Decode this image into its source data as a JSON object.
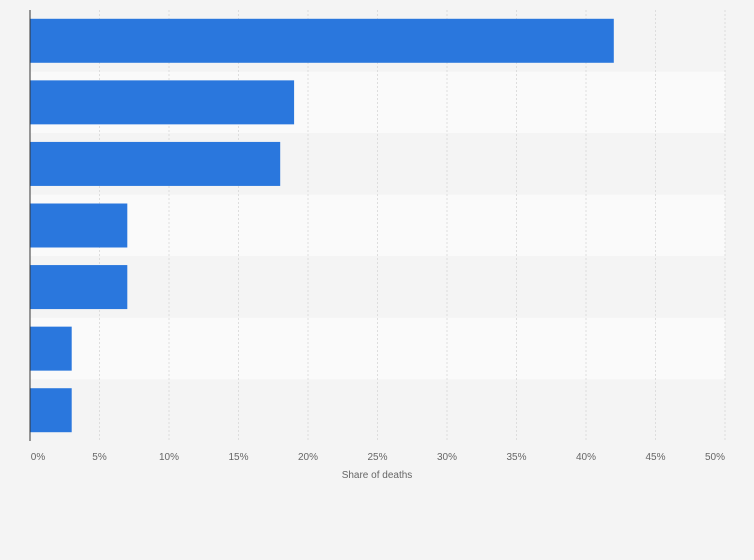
{
  "chart_data": {
    "type": "bar",
    "orientation": "horizontal",
    "categories": [
      "",
      "",
      "",
      "",
      "",
      "",
      ""
    ],
    "values": [
      42,
      19,
      18,
      7,
      7,
      3,
      3
    ],
    "xlabel": "Share of deaths",
    "ylabel": "",
    "xlim": [
      0,
      50
    ],
    "ticks": [
      "0%",
      "5%",
      "10%",
      "15%",
      "20%",
      "25%",
      "30%",
      "35%",
      "40%",
      "45%",
      "50%"
    ],
    "grid": true,
    "bar_color": "#2a77dd",
    "band_colors": [
      "#f4f4f4",
      "#fafafa"
    ]
  }
}
